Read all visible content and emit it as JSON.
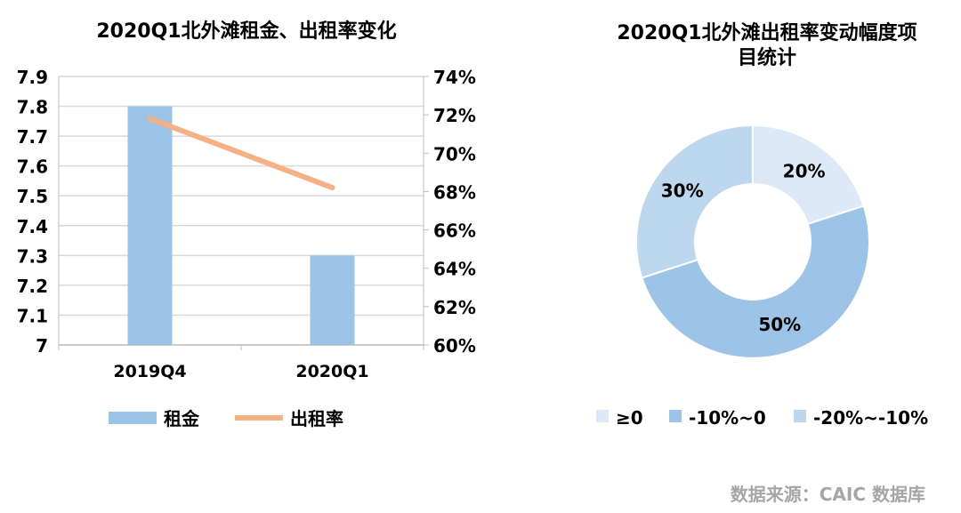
{
  "chart_data": [
    {
      "type": "bar+line",
      "title": "2020Q1北外滩租金、出租率变化",
      "categories": [
        "2019Q4",
        "2020Q1"
      ],
      "series": [
        {
          "name": "租金",
          "type": "bar",
          "axis": "left",
          "values": [
            7.8,
            7.3
          ],
          "color": "#9dc3e6"
        },
        {
          "name": "出租率",
          "type": "line",
          "axis": "right",
          "values": [
            71.8,
            68.2
          ],
          "color": "#f4b183"
        }
      ],
      "ylim": [
        7,
        7.9
      ],
      "y_ticks": [
        "7",
        "7.1",
        "7.2",
        "7.3",
        "7.4",
        "7.5",
        "7.6",
        "7.7",
        "7.8",
        "7.9"
      ],
      "y2lim": [
        60,
        74
      ],
      "y2_ticks": [
        "60%",
        "62%",
        "64%",
        "66%",
        "68%",
        "70%",
        "72%",
        "74%"
      ],
      "grid": true,
      "legend": "bottom"
    },
    {
      "type": "pie",
      "donut": true,
      "title": "2020Q1北外滩出租率变动幅度项目统计",
      "title_lines": [
        "2020Q1北外滩出租率变动幅度项",
        "目统计"
      ],
      "categories": [
        "≥0",
        "-10%~0",
        "-20%~-10%"
      ],
      "values": [
        20,
        50,
        30
      ],
      "labels": [
        "20%",
        "50%",
        "30%"
      ],
      "colors": [
        "#dde9f6",
        "#9dc3e6",
        "#bdd7ee"
      ],
      "legend": "bottom"
    }
  ],
  "source": "数据来源：CAIC 数据库"
}
